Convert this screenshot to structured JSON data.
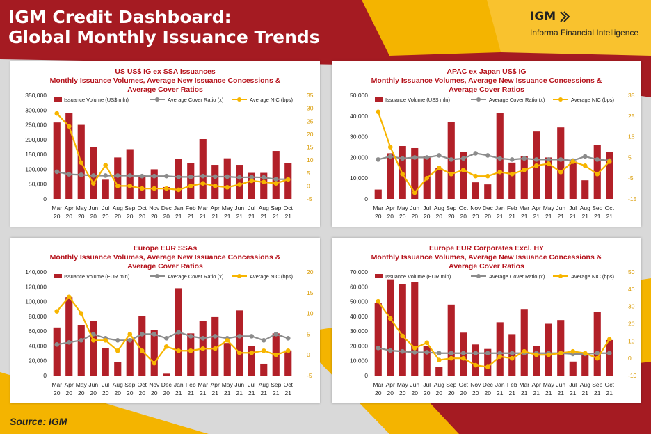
{
  "header": {
    "title_line1": "IGM Credit Dashboard:",
    "title_line2": "Global Monthly Issuance Trends",
    "logo_text": "IGM",
    "logo_subtitle": "Informa Financial Intelligence"
  },
  "footer": {
    "source": "Source: IGM"
  },
  "colors": {
    "dark_red": "#a51b22",
    "yellow": "#f7b800",
    "bar": "#b22028",
    "cover_line": "#8c8c8c",
    "nic_line": "#f7b500"
  },
  "months_top": [
    "Mar",
    "Apr",
    "May",
    "Jun",
    "Jul",
    "Aug",
    "Sep",
    "Oct",
    "Nov",
    "Dec",
    "Jan",
    "Feb",
    "Mar",
    "Apr",
    "May",
    "Jun",
    "Jul",
    "Aug",
    "Sep",
    "Oct"
  ],
  "months_bottom": [
    "20",
    "20",
    "20",
    "20",
    "20",
    "20",
    "20",
    "20",
    "20",
    "20",
    "21",
    "21",
    "21",
    "21",
    "21",
    "21",
    "21",
    "21",
    "21",
    "21"
  ],
  "chart_data": [
    {
      "type": "bar",
      "title_lines": [
        "US US$ IG ex SSA Issuances",
        "Monthly Issuance Volumes, Average New Issuance Concessions &",
        "Average Cover Ratios"
      ],
      "legend": [
        "Issuance Volume (US$ mln)",
        "Average Cover Ratio (x)",
        "Average NIC (bps)"
      ],
      "left_ticks": [
        "0",
        "50,000",
        "100,000",
        "150,000",
        "200,000",
        "250,000",
        "300,000",
        "350,000"
      ],
      "right_ticks": [
        "-5",
        "0",
        "5",
        "10",
        "15",
        "20",
        "25",
        "30",
        "35"
      ],
      "ylim": [
        0,
        350000
      ],
      "y2lim": [
        -5,
        35
      ],
      "bars": [
        258000,
        290000,
        250000,
        175000,
        65000,
        140000,
        168000,
        82000,
        100000,
        40000,
        135000,
        120000,
        202000,
        115000,
        137000,
        115000,
        88000,
        88000,
        162000,
        122000
      ],
      "cover": [
        5.5,
        4.5,
        4.3,
        4.0,
        4.0,
        4.0,
        4.0,
        3.8,
        3.8,
        3.8,
        3.5,
        3.5,
        3.8,
        3.6,
        3.6,
        3.3,
        3.4,
        3.3,
        2.6,
        2.6
      ],
      "nic": [
        28,
        23,
        9,
        1,
        8,
        0,
        0,
        -1,
        -1,
        -1,
        -1.5,
        0,
        1,
        0,
        -0.5,
        0.5,
        2,
        1.5,
        1,
        2.5
      ]
    },
    {
      "type": "bar",
      "title_lines": [
        "APAC ex Japan US$ IG",
        "Monthly Issuance Volumes, Average New Issuance Concessions &",
        "Average Cover Ratios"
      ],
      "legend": [
        "Issuance Volume (US$ mln)",
        "Average Cover Ratio (x)",
        "Average NIC (bps)"
      ],
      "left_ticks": [
        "0",
        "10,000",
        "20,000",
        "30,000",
        "40,000",
        "50,000"
      ],
      "right_ticks": [
        "-15",
        "-5",
        "5",
        "15",
        "25",
        "35"
      ],
      "ylim": [
        0,
        50000
      ],
      "y2lim": [
        -15,
        35
      ],
      "bars": [
        4500,
        22000,
        25500,
        24500,
        20500,
        15000,
        37000,
        22500,
        8000,
        7000,
        41500,
        17500,
        20500,
        32500,
        20000,
        34500,
        18000,
        9000,
        26000,
        22500
      ],
      "cover": [
        4,
        5.5,
        4.5,
        5,
        5,
        6,
        4,
        4.5,
        7,
        6,
        4.5,
        4,
        4.5,
        4,
        4,
        4,
        3.5,
        5.5,
        4,
        3.5
      ],
      "nic": [
        27,
        10,
        -3,
        -12,
        -5,
        0,
        -3,
        -1,
        -4,
        -4,
        -2,
        -3,
        -1,
        1,
        2,
        -2,
        3,
        1,
        -3,
        3
      ]
    },
    {
      "type": "bar",
      "title_lines": [
        "Europe EUR SSAs",
        "Monthly Issuance Volumes, Average New Issuance Concessions &",
        "Average Cover Ratios"
      ],
      "legend": [
        "Issuance Volume (EUR mln)",
        "Average Cover Ratio (x)",
        "Average NIC (bps)"
      ],
      "left_ticks": [
        "0",
        "20,000",
        "40,000",
        "60,000",
        "80,000",
        "100,000",
        "120,000",
        "140,000"
      ],
      "right_ticks": [
        "-5",
        "0",
        "5",
        "10",
        "15",
        "20"
      ],
      "ylim": [
        0,
        140000
      ],
      "y2lim": [
        -5,
        20
      ],
      "bars": [
        65000,
        106000,
        68000,
        74000,
        37000,
        18000,
        50000,
        80000,
        62000,
        2500,
        118000,
        57000,
        74000,
        79000,
        44000,
        88000,
        40000,
        16000,
        57000,
        34000
      ],
      "cover": [
        2.5,
        3,
        3.5,
        5,
        4,
        3.5,
        3.5,
        5,
        5,
        4,
        5.5,
        4.5,
        4,
        4.5,
        4,
        4.5,
        4.5,
        3.5,
        5,
        4
      ],
      "nic": [
        10.5,
        14,
        10,
        3.5,
        3.5,
        1,
        5,
        1,
        -2,
        2,
        1,
        1,
        1.5,
        1.5,
        3.5,
        0.5,
        0.5,
        1,
        0,
        1
      ]
    },
    {
      "type": "bar",
      "title_lines": [
        "Europe EUR Corporates Excl. HY",
        "Monthly Issuance Volumes, Average New Issuance Concessions &",
        "Average Cover Ratios"
      ],
      "legend": [
        "Issuance Volume (EUR mln)",
        "Average Cover Ratio (x)",
        "Average NIC (bps)"
      ],
      "left_ticks": [
        "0",
        "10,000",
        "20,000",
        "30,000",
        "40,000",
        "50,000",
        "60,000",
        "70,000"
      ],
      "right_ticks": [
        "-10",
        "0",
        "10",
        "20",
        "30",
        "40",
        "50"
      ],
      "ylim": [
        0,
        70000
      ],
      "y2lim": [
        -10,
        50
      ],
      "bars": [
        49000,
        65000,
        62000,
        63000,
        20000,
        6000,
        48000,
        29000,
        21000,
        18000,
        36000,
        28000,
        45000,
        20000,
        35000,
        37500,
        9500,
        15000,
        43000,
        24000
      ],
      "cover": [
        6,
        4.5,
        4,
        3.5,
        3.5,
        3,
        3,
        3,
        3,
        3,
        3,
        3,
        3,
        3,
        3,
        3,
        2.5,
        2.5,
        3,
        3
      ],
      "nic": [
        33,
        23,
        13,
        6,
        9,
        -1,
        0,
        0,
        -4,
        -5,
        1,
        0,
        4,
        2,
        2,
        3,
        4,
        3,
        0,
        11
      ]
    }
  ]
}
